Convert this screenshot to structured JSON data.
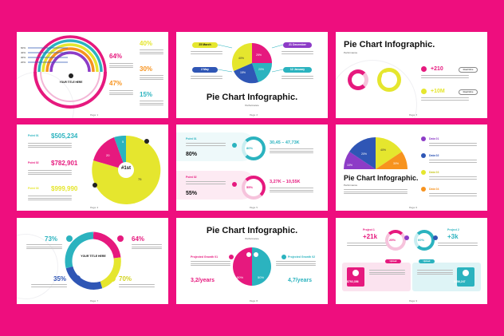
{
  "colors": {
    "background": "#ee0e7e",
    "magenta": "#e6197e",
    "yellow": "#e5e62e",
    "teal": "#2bb3bf",
    "purple": "#8d3cc7",
    "orange": "#f7931e",
    "blue": "#2f56b5",
    "green": "#7ac943"
  },
  "s1": {
    "center_title": "YOUR TITLE HERE",
    "pcts": [
      "64%",
      "47%",
      "40%",
      "30%",
      "15%"
    ],
    "ring_labels": [
      "60%",
      "40%",
      "30%",
      "20%"
    ],
    "page": "Page 1"
  },
  "s2": {
    "pill_a": "25 March",
    "pill_b": "2 May",
    "pill_c": "21 December",
    "pill_d": "12 January",
    "slices": [
      "25%",
      "20%",
      "15%",
      "40%"
    ],
    "title": "Pie Chart Infographic.",
    "subtitle": "Performance",
    "page": "Page 2"
  },
  "s3": {
    "title": "Pie Chart Infographic.",
    "subtitle": "Performance",
    "stat_a": "+210",
    "stat_b": "+10M",
    "btn_a": "Read More",
    "btn_b": "Read More",
    "page": "Page 3"
  },
  "s4": {
    "points": [
      "Point 01",
      "Point 02",
      "Point 03"
    ],
    "values": [
      "$505,234",
      "$782,901",
      "$999,990"
    ],
    "center": "#1st",
    "slice_labels": [
      "5",
      "20",
      "75"
    ],
    "page": "Page 4"
  },
  "s5": {
    "points": [
      "Point 01",
      "Point 02"
    ],
    "pcts": [
      "80%",
      "55%"
    ],
    "ring_a": "80%",
    "ring_b": "55%",
    "range_a": "30,45 – 47,73K",
    "range_b": "3,27K – 10,55K",
    "page": "Page 5"
  },
  "s6": {
    "slices": [
      "20%",
      "40%",
      "10%",
      "30%"
    ],
    "title": "Pie Chart Infographic.",
    "subtitle": "Performance",
    "data_labels": [
      "Data 01",
      "Data 02",
      "Data 03",
      "Data 04"
    ],
    "page": "Page 6"
  },
  "s7": {
    "center_title": "YOUR TITLE HERE",
    "pcts": [
      "73%",
      "64%",
      "35%",
      "70%"
    ],
    "page": "Page 7"
  },
  "s8": {
    "title": "Pie Chart Infographic.",
    "subtitle": "Performance",
    "left_label": "Projected Growth 01",
    "right_label": "Projected Growth 02",
    "left_pct": "50%",
    "right_pct": "50%",
    "left_value": "3,2/years",
    "right_value": "4,7/years",
    "page": "Page 8"
  },
  "s9": {
    "project_a": "Project 1",
    "project_b": "Project 2",
    "value_a": "+21k",
    "value_b": "+3k",
    "ring_a": "25%",
    "ring_b": "60%",
    "tab_a": "Upload",
    "tab_b": "Upload",
    "money_a": "$792,356",
    "money_b": "$456,247",
    "page": "Page 9"
  }
}
